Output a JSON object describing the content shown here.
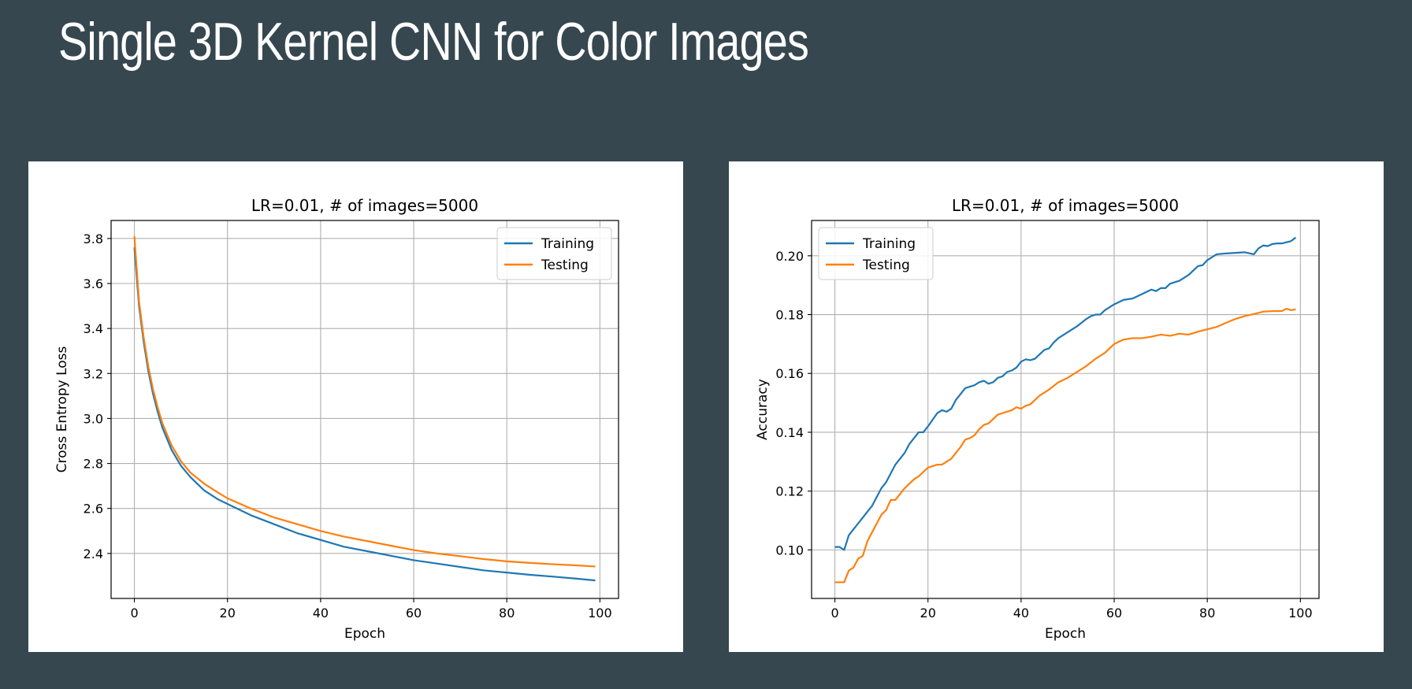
{
  "slide": {
    "title": "Single 3D Kernel CNN for Color Images"
  },
  "colors": {
    "background": "#37474f",
    "training": "#1f77b4",
    "testing": "#ff7f0e",
    "grid": "#b0b0b0"
  },
  "chart_data": [
    {
      "type": "line",
      "title": "LR=0.01, # of images=5000",
      "xlabel": "Epoch",
      "ylabel": "Cross Entropy Loss",
      "xlim": [
        -5,
        104
      ],
      "ylim": [
        2.2,
        3.88
      ],
      "xticks": [
        0,
        20,
        40,
        60,
        80,
        100
      ],
      "yticks": [
        2.4,
        2.6,
        2.8,
        3.0,
        3.2,
        3.4,
        3.6,
        3.8
      ],
      "ytick_format": 1,
      "grid": true,
      "legend": "upper right",
      "series": [
        {
          "name": "Training",
          "x": [
            0,
            1,
            2,
            3,
            4,
            5,
            6,
            7,
            8,
            10,
            12,
            15,
            18,
            20,
            25,
            30,
            35,
            40,
            45,
            50,
            55,
            60,
            65,
            70,
            75,
            80,
            85,
            90,
            95,
            99
          ],
          "y": [
            3.76,
            3.5,
            3.34,
            3.21,
            3.11,
            3.03,
            2.96,
            2.91,
            2.86,
            2.79,
            2.74,
            2.68,
            2.64,
            2.62,
            2.57,
            2.53,
            2.49,
            2.46,
            2.43,
            2.41,
            2.39,
            2.37,
            2.355,
            2.34,
            2.325,
            2.315,
            2.305,
            2.297,
            2.288,
            2.28
          ]
        },
        {
          "name": "Testing",
          "x": [
            0,
            1,
            2,
            3,
            4,
            5,
            6,
            7,
            8,
            10,
            12,
            15,
            18,
            20,
            25,
            30,
            35,
            40,
            45,
            50,
            55,
            60,
            65,
            70,
            75,
            80,
            85,
            90,
            95,
            99
          ],
          "y": [
            3.81,
            3.52,
            3.36,
            3.23,
            3.13,
            3.05,
            2.98,
            2.93,
            2.88,
            2.81,
            2.76,
            2.71,
            2.67,
            2.645,
            2.6,
            2.56,
            2.53,
            2.5,
            2.475,
            2.455,
            2.435,
            2.415,
            2.4,
            2.388,
            2.375,
            2.365,
            2.358,
            2.352,
            2.347,
            2.342
          ]
        }
      ]
    },
    {
      "type": "line",
      "title": "LR=0.01, # of images=5000",
      "xlabel": "Epoch",
      "ylabel": "Accuracy",
      "xlim": [
        -5,
        104
      ],
      "ylim": [
        0.0835,
        0.212
      ],
      "xticks": [
        0,
        20,
        40,
        60,
        80,
        100
      ],
      "yticks": [
        0.1,
        0.12,
        0.14,
        0.16,
        0.18,
        0.2
      ],
      "ytick_format": 2,
      "grid": true,
      "legend": "upper left",
      "series": [
        {
          "name": "Training",
          "x": [
            0,
            1,
            2,
            3,
            4,
            5,
            6,
            7,
            8,
            9,
            10,
            11,
            12,
            13,
            14,
            15,
            16,
            17,
            18,
            19,
            20,
            22,
            23,
            24,
            25,
            26,
            27,
            28,
            29,
            30,
            31,
            32,
            33,
            34,
            35,
            36,
            37,
            38,
            39,
            40,
            41,
            42,
            43,
            45,
            46,
            47,
            48,
            49,
            50,
            52,
            54,
            55,
            56,
            57,
            58,
            60,
            62,
            64,
            66,
            68,
            69,
            70,
            71,
            72,
            74,
            76,
            78,
            79,
            80,
            82,
            84,
            86,
            88,
            90,
            91,
            92,
            93,
            94,
            95,
            96,
            98,
            99
          ],
          "y": [
            0.101,
            0.101,
            0.1,
            0.105,
            0.107,
            0.109,
            0.111,
            0.113,
            0.115,
            0.118,
            0.121,
            0.123,
            0.126,
            0.129,
            0.131,
            0.133,
            0.136,
            0.138,
            0.14,
            0.14,
            0.142,
            0.1465,
            0.1475,
            0.147,
            0.148,
            0.151,
            0.153,
            0.155,
            0.1555,
            0.156,
            0.157,
            0.1575,
            0.1565,
            0.157,
            0.1585,
            0.159,
            0.1605,
            0.161,
            0.162,
            0.164,
            0.1648,
            0.1645,
            0.165,
            0.168,
            0.1685,
            0.1705,
            0.172,
            0.173,
            0.174,
            0.176,
            0.1785,
            0.1795,
            0.18,
            0.18,
            0.1815,
            0.1835,
            0.185,
            0.1855,
            0.187,
            0.1885,
            0.188,
            0.189,
            0.189,
            0.1905,
            0.1915,
            0.1935,
            0.1965,
            0.1968,
            0.1985,
            0.2005,
            0.2008,
            0.201,
            0.2012,
            0.2005,
            0.2025,
            0.2035,
            0.2033,
            0.204,
            0.2042,
            0.2042,
            0.205,
            0.2062
          ]
        },
        {
          "name": "Testing",
          "x": [
            0,
            1,
            2,
            3,
            4,
            5,
            6,
            7,
            8,
            9,
            10,
            11,
            12,
            13,
            14,
            15,
            16,
            17,
            18,
            19,
            20,
            21,
            22,
            23,
            24,
            25,
            26,
            27,
            28,
            29,
            30,
            31,
            32,
            33,
            34,
            35,
            36,
            37,
            38,
            39,
            40,
            41,
            42,
            43,
            44,
            46,
            48,
            50,
            52,
            54,
            56,
            58,
            60,
            62,
            64,
            66,
            68,
            70,
            72,
            74,
            76,
            78,
            80,
            82,
            84,
            86,
            88,
            90,
            92,
            94,
            96,
            97,
            98,
            99
          ],
          "y": [
            0.089,
            0.089,
            0.089,
            0.093,
            0.094,
            0.097,
            0.098,
            0.103,
            0.106,
            0.109,
            0.112,
            0.1135,
            0.117,
            0.117,
            0.119,
            0.121,
            0.1225,
            0.124,
            0.125,
            0.1265,
            0.128,
            0.1285,
            0.129,
            0.129,
            0.13,
            0.131,
            0.133,
            0.135,
            0.1375,
            0.138,
            0.139,
            0.141,
            0.1425,
            0.143,
            0.1445,
            0.146,
            0.1465,
            0.147,
            0.1475,
            0.1485,
            0.148,
            0.149,
            0.1495,
            0.151,
            0.1525,
            0.1545,
            0.157,
            0.1585,
            0.1605,
            0.1625,
            0.165,
            0.167,
            0.17,
            0.1715,
            0.172,
            0.172,
            0.1725,
            0.1732,
            0.1728,
            0.1735,
            0.1732,
            0.1742,
            0.175,
            0.1758,
            0.1772,
            0.1785,
            0.1795,
            0.1802,
            0.181,
            0.1812,
            0.1812,
            0.182,
            0.1815,
            0.1818
          ]
        }
      ]
    }
  ]
}
